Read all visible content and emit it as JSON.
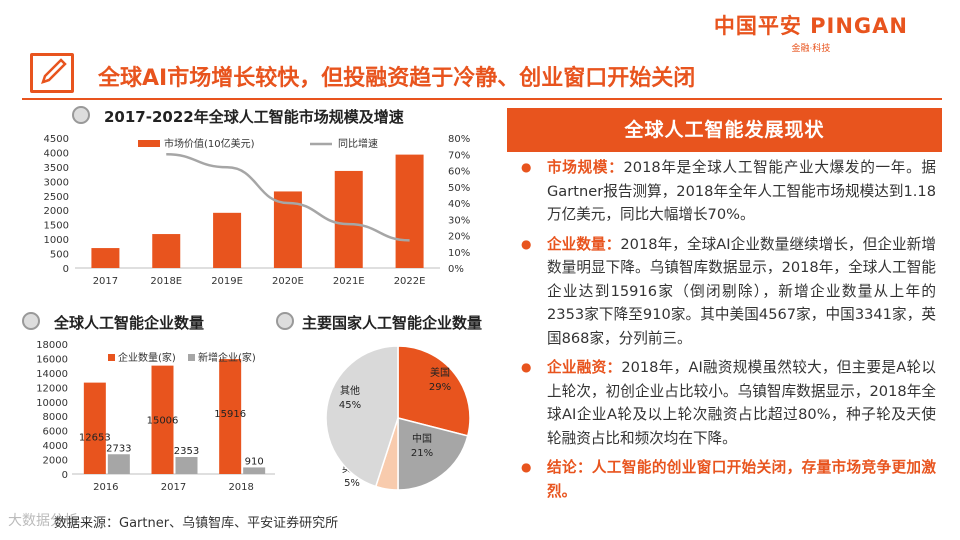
{
  "logo": {
    "main": "中国平安 PINGAN",
    "sub": "金融·科技"
  },
  "header": {
    "title": "全球AI市场增长较快，但投融资趋于冷静、创业窗口开始关闭"
  },
  "sections": {
    "market": "2017-2022年全球人工智能市场规模及增速",
    "companies": "全球人工智能企业数量",
    "countries": "主要国家人工智能企业数量"
  },
  "right": {
    "header": "全球人工智能发展现状",
    "bullets": [
      {
        "label": "市场规模：",
        "text": "2018年是全球人工智能产业大爆发的一年。据Gartner报告测算，2018年全年人工智能市场规模达到1.18万亿美元，同比大幅增长70%。"
      },
      {
        "label": "企业数量：",
        "text": "2018年，全球AI企业数量继续增长，但企业新增数量明显下降。乌镇智库数据显示，2018年，全球人工智能企业达到15916家（倒闭剔除），新增企业数量从上年的2353家下降至910家。其中美国4567家，中国3341家，英国868家，分列前三。"
      },
      {
        "label": "企业融资：",
        "text": "2018年，AI融资规模虽然较大，但主要是A轮以上轮次，初创企业占比较小。乌镇智库数据显示，2018年全球AI企业A轮及以上轮次融资占比超过80%，种子轮及天使轮融资占比和频次均在下降。"
      },
      {
        "label": "",
        "text": "结论：人工智能的创业窗口开始关闭，存量市场竞争更加激烈。"
      }
    ]
  },
  "source": "数据来源：Gartner、乌镇智库、平安证券研究所",
  "watermark": "大数据分析",
  "colors": {
    "accent": "#e8541e",
    "gray": "#a6a6a6",
    "pie_gray": "#d9d9d9",
    "pie_light": "#f8cbad"
  },
  "chart_data": [
    {
      "type": "bar+line",
      "title": "2017-2022年全球人工智能市场规模及增速",
      "categories": [
        "2017",
        "2018E",
        "2019E",
        "2020E",
        "2021E",
        "2022E"
      ],
      "series": [
        {
          "name": "市场价值(10亿美元)",
          "type": "bar",
          "axis": "left",
          "values": [
            690,
            1175,
            1910,
            2650,
            3360,
            3925
          ]
        },
        {
          "name": "同比增速",
          "type": "line",
          "axis": "right",
          "values": [
            null,
            70,
            62,
            40,
            27,
            17
          ]
        }
      ],
      "ylim_left": [
        0,
        4500
      ],
      "yticks_left": [
        "0",
        "500",
        "1000",
        "1500",
        "2000",
        "2500",
        "3000",
        "3500",
        "4000",
        "4500"
      ],
      "ylim_right": [
        0,
        80
      ],
      "yticks_right": [
        "0%",
        "10%",
        "20%",
        "30%",
        "40%",
        "50%",
        "60%",
        "70%",
        "80%"
      ]
    },
    {
      "type": "bar",
      "title": "全球人工智能企业数量",
      "categories": [
        "2016",
        "2017",
        "2018"
      ],
      "series": [
        {
          "name": "企业数量(家)",
          "values": [
            12653,
            15006,
            15916
          ]
        },
        {
          "name": "新增企业(家)",
          "values": [
            2733,
            2353,
            910
          ]
        }
      ],
      "ylim": [
        0,
        18000
      ],
      "yticks": [
        "0",
        "2000",
        "4000",
        "6000",
        "8000",
        "10000",
        "12000",
        "14000",
        "16000",
        "18000"
      ]
    },
    {
      "type": "pie",
      "title": "主要国家人工智能企业数量",
      "slices": [
        {
          "label": "美国",
          "value": 29,
          "value_label": "29%"
        },
        {
          "label": "中国",
          "value": 21,
          "value_label": "21%"
        },
        {
          "label": "英国",
          "value": 5,
          "value_label": "5%"
        },
        {
          "label": "其他",
          "value": 45,
          "value_label": "45%"
        }
      ]
    }
  ]
}
